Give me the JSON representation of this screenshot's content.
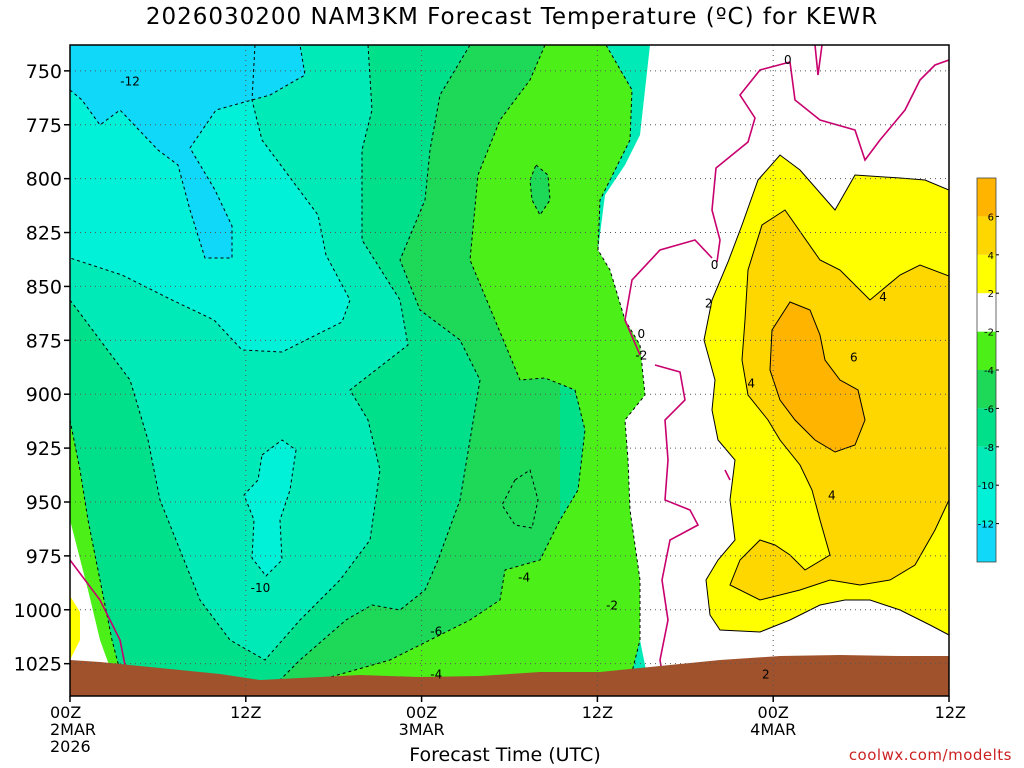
{
  "title": "2026030200 NAM3KM Forecast Temperature (ºC) for KEWR",
  "watermark": "coolwx.com/modelts",
  "chart_data": {
    "type": "heatmap",
    "title": "2026030200 NAM3KM Forecast Temperature (ºC) for KEWR",
    "xlabel": "Forecast Time (UTC)",
    "ylabel": "",
    "x_ticks": [
      {
        "hour": 0,
        "label": "00Z",
        "sub1": "2MAR",
        "sub2": "2026"
      },
      {
        "hour": 12,
        "label": "12Z",
        "sub1": "",
        "sub2": ""
      },
      {
        "hour": 24,
        "label": "00Z",
        "sub1": "3MAR",
        "sub2": ""
      },
      {
        "hour": 36,
        "label": "12Z",
        "sub1": "",
        "sub2": ""
      },
      {
        "hour": 48,
        "label": "00Z",
        "sub1": "4MAR",
        "sub2": ""
      },
      {
        "hour": 60,
        "label": "12Z",
        "sub1": "",
        "sub2": ""
      }
    ],
    "xlim": [
      0,
      60
    ],
    "y_ticks": [
      750,
      775,
      800,
      825,
      850,
      875,
      900,
      925,
      950,
      975,
      1000,
      1025
    ],
    "ylim": [
      738,
      1040
    ],
    "grid": true,
    "legend_position": "right",
    "colorbar": {
      "levels": [
        -14,
        -12,
        -10,
        -8,
        -6,
        -4,
        -2,
        2,
        4,
        6,
        8
      ],
      "tick_labels": [
        "-12",
        "-10",
        "-8",
        "-6",
        "-4",
        "-2",
        "2",
        "4",
        "6"
      ],
      "colors": [
        "#10d8f8",
        "#00f0d8",
        "#00eab8",
        "#00e08a",
        "#1ed858",
        "#4cf018",
        "#ffffff",
        "#ffff00",
        "#ffd700",
        "#ffb400"
      ]
    },
    "ground_color": "#a0522d",
    "zero_line_color": "#c8006e",
    "contour_labels": [
      {
        "text": "-12",
        "hour": 4.1,
        "p": 755
      },
      {
        "text": "-10",
        "hour": 13.0,
        "p": 990
      },
      {
        "text": "-6",
        "hour": 25.0,
        "p": 1010
      },
      {
        "text": "-4",
        "hour": 25.0,
        "p": 1030
      },
      {
        "text": "-4",
        "hour": 31.0,
        "p": 985
      },
      {
        "text": "-2",
        "hour": 37.0,
        "p": 998
      },
      {
        "text": "-2",
        "hour": 39.0,
        "p": 882
      },
      {
        "text": "0",
        "hour": 39.0,
        "p": 872
      },
      {
        "text": "0",
        "hour": 44.0,
        "p": 840
      },
      {
        "text": "0",
        "hour": 49.0,
        "p": 745
      },
      {
        "text": "2",
        "hour": 43.6,
        "p": 858
      },
      {
        "text": "2",
        "hour": 47.5,
        "p": 1030
      },
      {
        "text": "4",
        "hour": 46.5,
        "p": 895
      },
      {
        "text": "4",
        "hour": 52.0,
        "p": 947
      },
      {
        "text": "4",
        "hour": 55.5,
        "p": 855
      },
      {
        "text": "6",
        "hour": 53.5,
        "p": 883
      }
    ]
  }
}
